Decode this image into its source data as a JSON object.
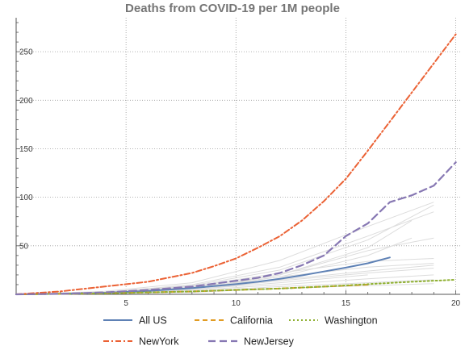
{
  "chart_data": {
    "type": "line",
    "title": "Deaths from COVID-19 per 1M people",
    "xlabel": "",
    "ylabel": "",
    "xlim": [
      0,
      20.2
    ],
    "ylim": [
      0,
      285
    ],
    "x_ticks": [
      5,
      10,
      15,
      20
    ],
    "y_ticks": [
      50,
      100,
      150,
      200,
      250
    ],
    "grid": "dotted vertical and horizontal at ticks",
    "legend_position": "bottom",
    "series": [
      {
        "name": "All US",
        "color": "#5e81b5",
        "dash": "solid",
        "width": 2,
        "x": [
          0,
          2,
          4,
          6,
          8,
          10,
          11,
          12,
          13,
          14,
          15,
          16,
          17
        ],
        "y": [
          0,
          0.5,
          1.5,
          3.5,
          6.5,
          10.5,
          13,
          16,
          19.5,
          23.5,
          27.5,
          32,
          38
        ]
      },
      {
        "name": "California",
        "color": "#e19c24",
        "dash": "dashed",
        "width": 2,
        "x": [
          0,
          2,
          4,
          6,
          8,
          10,
          12,
          14,
          15,
          16
        ],
        "y": [
          0,
          0.5,
          1,
          2,
          3,
          4.5,
          6,
          8,
          9,
          10
        ]
      },
      {
        "name": "Washington",
        "color": "#8fb032",
        "dash": "dotted",
        "width": 2,
        "x": [
          0,
          2,
          4,
          6,
          8,
          10,
          12,
          14,
          16,
          18,
          20
        ],
        "y": [
          0,
          0.5,
          1,
          2,
          3,
          4.5,
          6,
          8,
          10.5,
          13,
          15
        ]
      },
      {
        "name": "NewYork",
        "color": "#eb6235",
        "dash": "dash-dot",
        "width": 2,
        "x": [
          0,
          2,
          4,
          6,
          8,
          9,
          10,
          11,
          12,
          13,
          14,
          15,
          16,
          17,
          18,
          19,
          20
        ],
        "y": [
          0,
          3,
          8,
          13,
          22,
          29,
          37,
          48,
          60,
          76,
          96,
          119,
          148,
          178,
          208,
          238,
          268
        ]
      },
      {
        "name": "NewJersey",
        "color": "#8778b3",
        "dash": "long-dash",
        "width": 2.2,
        "x": [
          0,
          2,
          4,
          6,
          8,
          9,
          10,
          11,
          12,
          13,
          14,
          15,
          16,
          17,
          18,
          19,
          20
        ],
        "y": [
          0,
          0.5,
          2,
          4.5,
          8,
          11,
          14,
          17,
          22,
          30,
          40,
          60,
          73,
          95,
          102,
          112,
          136
        ]
      }
    ],
    "background_series": [
      {
        "x": [
          0,
          4,
          8,
          12,
          16,
          19
        ],
        "y": [
          0,
          3,
          12,
          35,
          70,
          95
        ]
      },
      {
        "x": [
          0,
          4,
          8,
          12,
          16,
          19
        ],
        "y": [
          0,
          2,
          10,
          28,
          60,
          85
        ]
      },
      {
        "x": [
          0,
          4,
          8,
          12,
          16,
          19
        ],
        "y": [
          0,
          2,
          9,
          25,
          56,
          92
        ]
      },
      {
        "x": [
          0,
          4,
          8,
          12,
          16,
          18
        ],
        "y": [
          0,
          1,
          7,
          20,
          48,
          76
        ]
      },
      {
        "x": [
          0,
          4,
          8,
          12,
          16,
          18
        ],
        "y": [
          0,
          1,
          6,
          18,
          40,
          58
        ]
      },
      {
        "x": [
          0,
          4,
          8,
          12,
          16,
          19
        ],
        "y": [
          0,
          2,
          8,
          22,
          34,
          37
        ]
      },
      {
        "x": [
          0,
          4,
          8,
          12,
          16,
          19
        ],
        "y": [
          0,
          1,
          6,
          18,
          28,
          32
        ]
      },
      {
        "x": [
          0,
          4,
          8,
          12,
          16,
          19
        ],
        "y": [
          0,
          1,
          5,
          14,
          22,
          27
        ]
      },
      {
        "x": [
          0,
          4,
          8,
          12,
          16,
          19
        ],
        "y": [
          0,
          1,
          4,
          10,
          16,
          20
        ]
      },
      {
        "x": [
          0,
          4,
          8,
          12,
          16,
          19
        ],
        "y": [
          0,
          0.5,
          3,
          8,
          12,
          15
        ]
      },
      {
        "x": [
          0,
          4,
          8,
          12,
          16,
          19
        ],
        "y": [
          0,
          1,
          5,
          20,
          45,
          58
        ]
      },
      {
        "x": [
          0,
          4,
          8,
          12,
          16,
          19
        ],
        "y": [
          0,
          2,
          8,
          15,
          24,
          30
        ]
      },
      {
        "x": [
          0,
          4,
          8,
          12,
          16,
          19
        ],
        "y": [
          0,
          0.5,
          2,
          6,
          9,
          11
        ]
      },
      {
        "x": [
          0,
          4,
          8,
          12,
          16
        ],
        "y": [
          0,
          1,
          5,
          12,
          20
        ]
      }
    ],
    "background_color": "#dcdcdc"
  }
}
